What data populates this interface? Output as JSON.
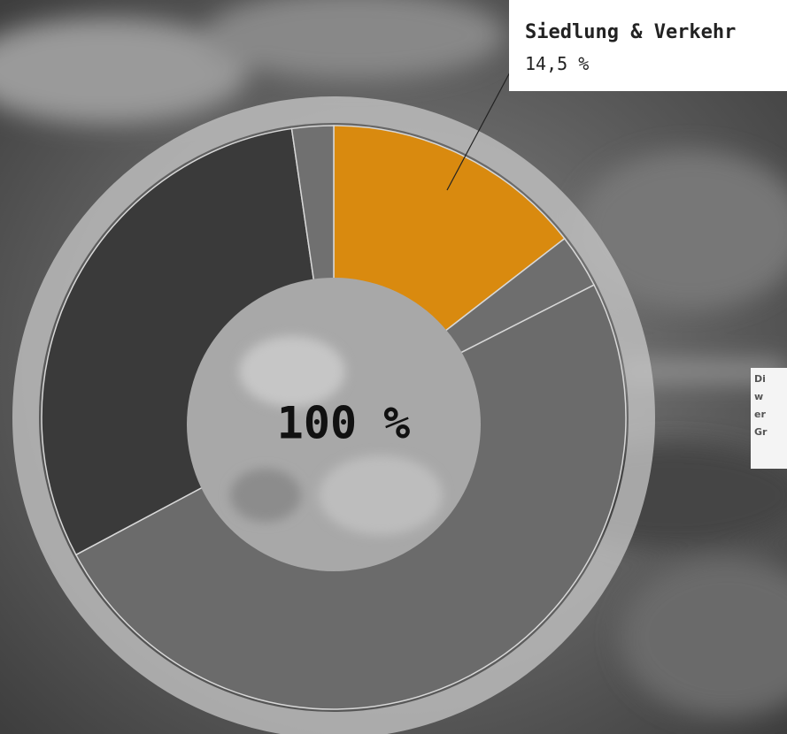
{
  "chart_data": {
    "type": "donut",
    "center_label": "100 %",
    "categories": [
      "Siedlung & Verkehr",
      null,
      null,
      null,
      null
    ],
    "values": [
      14.5,
      3.0,
      49.7,
      30.5,
      2.3
    ],
    "value_labels": [
      "14,5 %",
      null,
      null,
      null,
      null
    ],
    "colors": [
      "#d98a0f",
      "#6e6e6e",
      "#6b6b6b",
      "#3a3a3a",
      "#707070"
    ]
  },
  "side_text": [
    "Di",
    "w",
    "er",
    "Gr"
  ]
}
